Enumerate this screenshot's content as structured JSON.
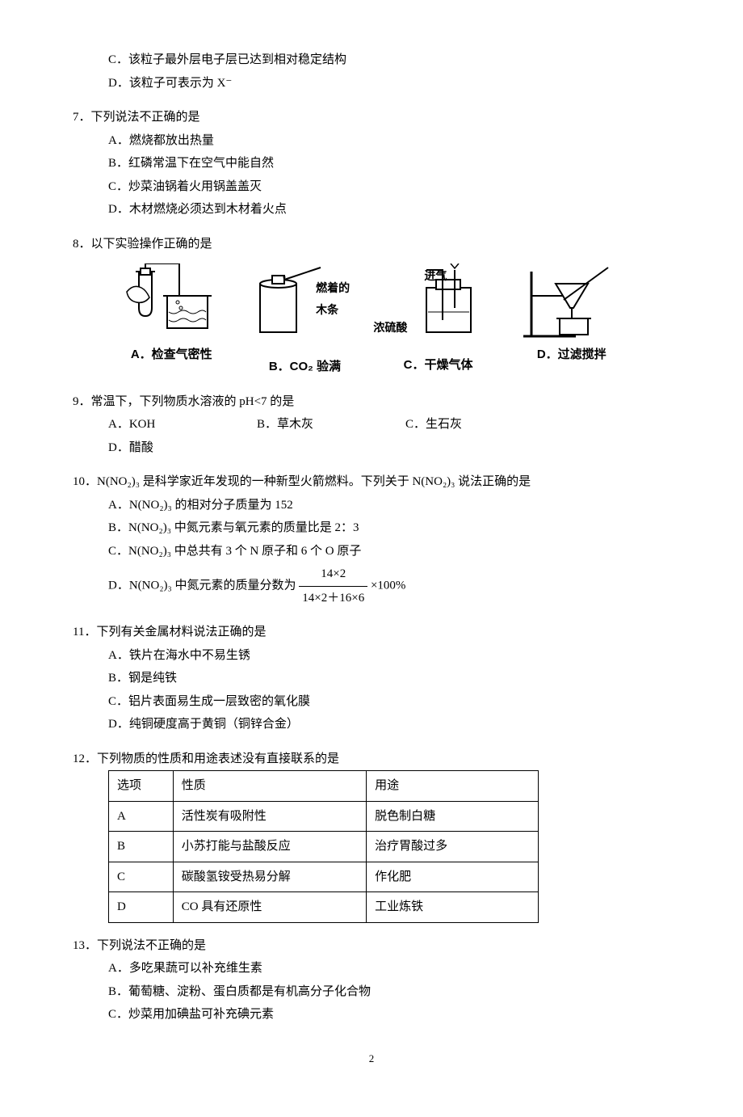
{
  "colors": {
    "text": "#000000",
    "bg": "#ffffff",
    "border": "#000000"
  },
  "q6tail": {
    "C": "C．该粒子最外层电子层已达到相对稳定结构",
    "D": "D．该粒子可表示为 X⁻"
  },
  "q7": {
    "stem": "7．下列说法不正确的是",
    "A": "A．燃烧都放出热量",
    "B": "B．红磷常温下在空气中能自然",
    "C": "C．炒菜油锅着火用锅盖盖灭",
    "D": "D．木材燃烧必须达到木材着火点"
  },
  "q8": {
    "stem": "8．以下实验操作正确的是",
    "figA_caption": "A．检查气密性",
    "figB_caption": "B．CO₂ 验满",
    "figB_annot1": "燃着的",
    "figB_annot2": "木条",
    "figC_caption": "C．干燥气体",
    "figC_annot1": "进气",
    "figC_annot2": "浓硫酸",
    "figD_caption": "D．过滤搅拌"
  },
  "q9": {
    "stem": "9．常温下，下列物质水溶液的 pH<7 的是",
    "A": "A．KOH",
    "B": "B．草木灰",
    "C": "C．生石灰",
    "D": "D．醋酸"
  },
  "q10": {
    "stem": "10．N(NO₂)₃ 是科学家近年发现的一种新型火箭燃料。下列关于 N(NO₂)₃ 说法正确的是",
    "A": "A．N(NO₂)₃ 的相对分子质量为 152",
    "B": "B．N(NO₂)₃ 中氮元素与氧元素的质量比是 2：3",
    "C": "C．N(NO₂)₃ 中总共有 3 个 N 原子和 6 个 O 原子",
    "D_prefix": "D．N(NO₂)₃ 中氮元素的质量分数为",
    "frac_num": "14×2",
    "frac_den": "14×2＋16×6",
    "frac_tail": "×100%"
  },
  "q11": {
    "stem": "11．下列有关金属材料说法正确的是",
    "A": "A．铁片在海水中不易生锈",
    "B": "B．钢是纯铁",
    "C": "C．铝片表面易生成一层致密的氧化膜",
    "D": "D．纯铜硬度高于黄铜（铜锌合金）"
  },
  "q12": {
    "stem": "12．下列物质的性质和用途表述没有直接联系的是",
    "header": {
      "c1": "选项",
      "c2": "性质",
      "c3": "用途"
    },
    "rows": [
      {
        "c1": "A",
        "c2": "活性炭有吸附性",
        "c3": "脱色制白糖"
      },
      {
        "c1": "B",
        "c2": "小苏打能与盐酸反应",
        "c3": "治疗胃酸过多"
      },
      {
        "c1": "C",
        "c2": "碳酸氢铵受热易分解",
        "c3": "作化肥"
      },
      {
        "c1": "D",
        "c2": "CO 具有还原性",
        "c3": "工业炼铁"
      }
    ],
    "col_widths": [
      "15%",
      "45%",
      "40%"
    ]
  },
  "q13": {
    "stem": "13．下列说法不正确的是",
    "A": "A．多吃果蔬可以补充维生素",
    "B": "B．葡萄糖、淀粉、蛋白质都是有机高分子化合物",
    "C": "C．炒菜用加碘盐可补充碘元素"
  },
  "page_number": "2"
}
